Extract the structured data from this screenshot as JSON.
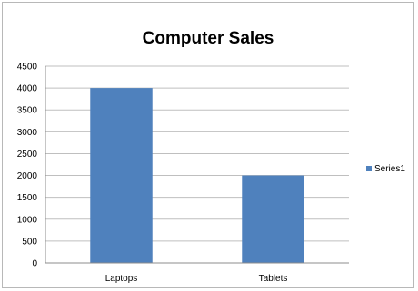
{
  "chart_data": {
    "type": "bar",
    "title": "Computer Sales",
    "categories": [
      "Laptops",
      "Tablets"
    ],
    "series": [
      {
        "name": "Series1",
        "values": [
          4000,
          2000
        ],
        "color": "#4f81bd"
      }
    ],
    "ylim": [
      0,
      4500
    ],
    "yticks": [
      "0",
      "500",
      "1000",
      "1500",
      "2000",
      "2500",
      "3000",
      "3500",
      "4000",
      "4500"
    ],
    "grid": true,
    "legend": "right",
    "gridColor": "#bfbfbf",
    "axisColor": "#8c8c8c"
  }
}
